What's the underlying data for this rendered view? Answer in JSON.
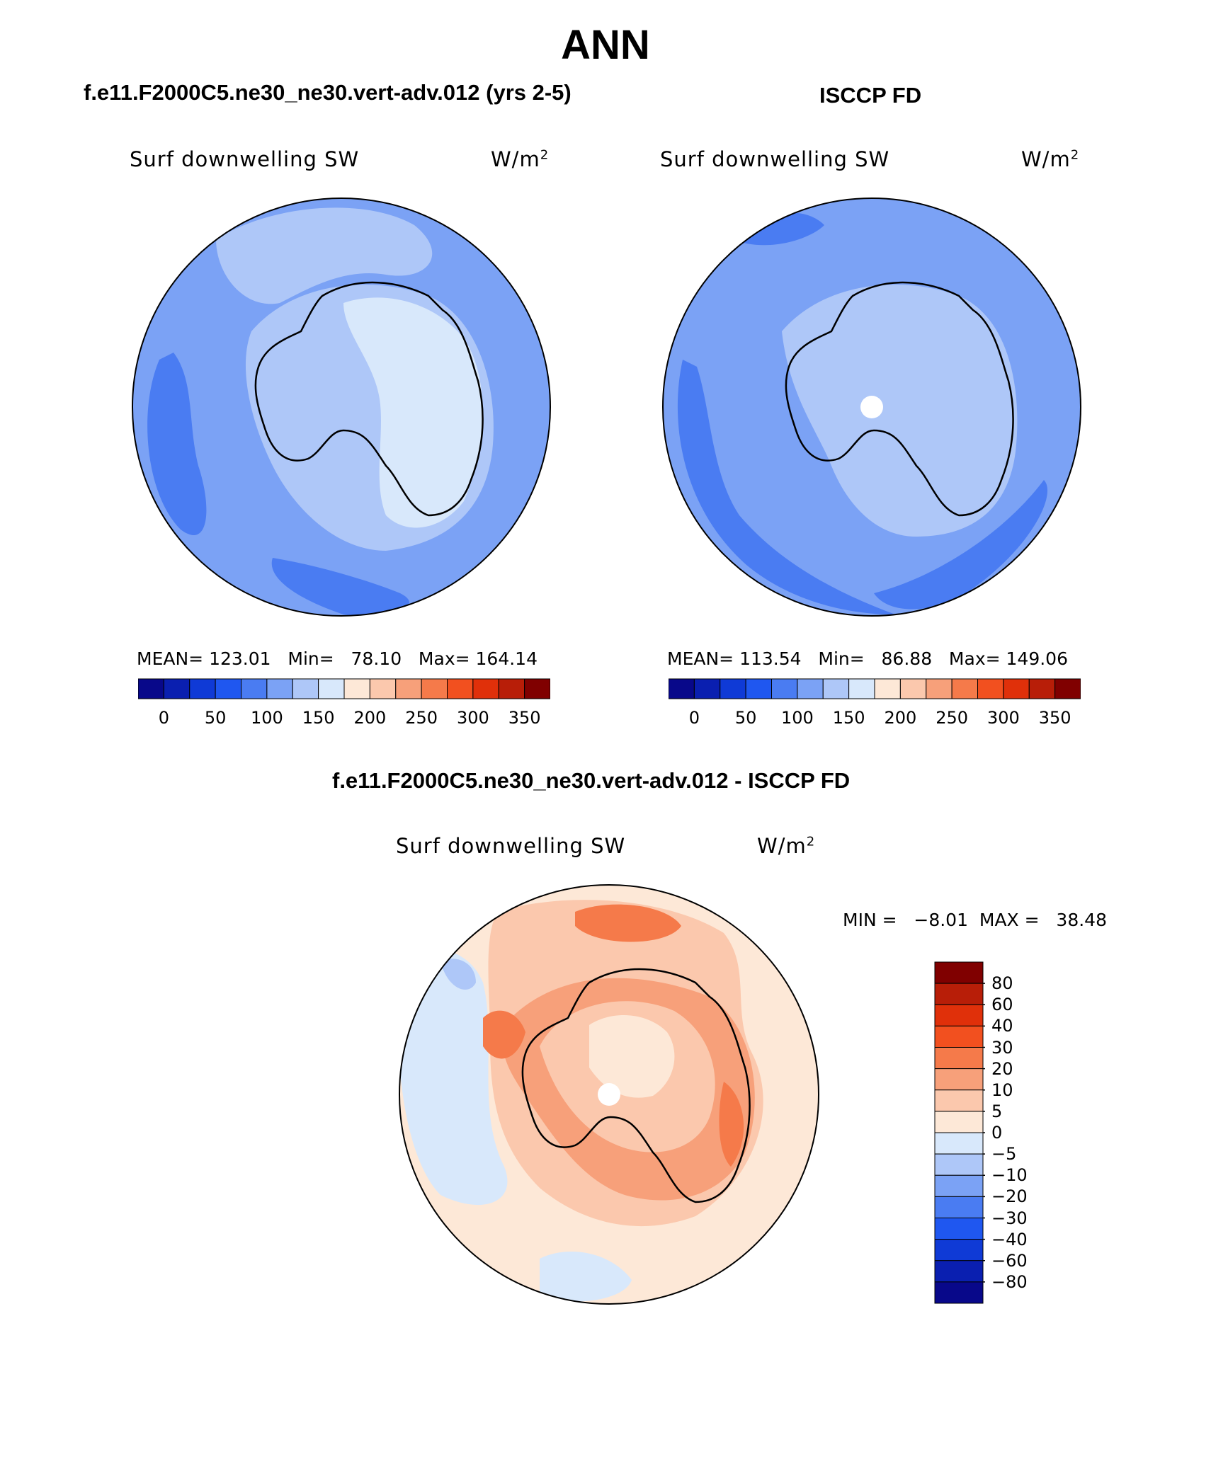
{
  "figure": {
    "season": "ANN",
    "panel_model": {
      "title": "f.e11.F2000C5.ne30_ne30.vert-adv.012 (yrs 2-5)",
      "variable": "Surf downwelling SW",
      "units_base": "W/m",
      "units_exp": "2",
      "stats": "MEAN= 123.01   Min=   78.10   Max= 164.14"
    },
    "panel_obs": {
      "title": "ISCCP FD",
      "variable": "Surf downwelling SW",
      "units_base": "W/m",
      "units_exp": "2",
      "stats": "MEAN= 113.54   Min=   86.88   Max= 149.06"
    },
    "panel_diff": {
      "title": "f.e11.F2000C5.ne30_ne30.vert-adv.012 - ISCCP FD",
      "variable": "Surf downwelling SW",
      "units_base": "W/m",
      "units_exp": "2",
      "stats": "MIN =   −8.01  MAX =   38.48"
    },
    "colorbar_abs": {
      "ticks": [
        "0",
        "50",
        "100",
        "150",
        "200",
        "250",
        "300",
        "350"
      ],
      "colors": [
        "#08088a",
        "#0a1fb0",
        "#0f3ad6",
        "#1f57f0",
        "#4a7cf2",
        "#7ba2f5",
        "#aec7f8",
        "#d8e8fb",
        "#fde8d7",
        "#fbc8ad",
        "#f7a07a",
        "#f57a4a",
        "#f2501f",
        "#e0300a",
        "#b81e08",
        "#800000"
      ]
    },
    "colorbar_diff": {
      "ticks": [
        "80",
        "60",
        "40",
        "30",
        "20",
        "10",
        "5",
        "0",
        "−5",
        "−10",
        "−20",
        "−30",
        "−40",
        "−60",
        "−80"
      ],
      "colors": [
        "#800000",
        "#b81e08",
        "#e0300a",
        "#f2501f",
        "#f57a4a",
        "#f7a07a",
        "#fbc8ad",
        "#fde8d7",
        "#d8e8fb",
        "#aec7f8",
        "#7ba2f5",
        "#4a7cf2",
        "#1f57f0",
        "#0f3ad6",
        "#0a1fb0",
        "#08088a"
      ]
    }
  }
}
